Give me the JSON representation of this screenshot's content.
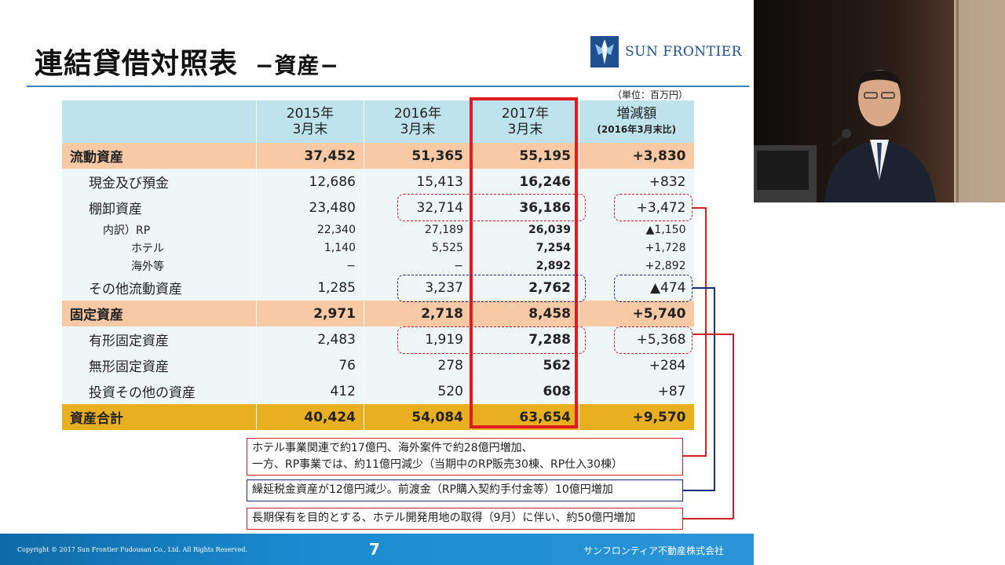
{
  "slide": {
    "title": "連結貸借対照表",
    "subtitle": "−資産−",
    "logo_text": "SUN FRONTIER",
    "unit_note": "（単位：百万円）",
    "page_number": "7",
    "copyright": "Copyright © 2017 Sun Frontier Fudousan Co., Ltd. All Rights Reserved.",
    "company": "サンフロンティア不動産株式会社"
  },
  "table": {
    "headers": [
      {
        "line1": "2015年",
        "line2": "3月末"
      },
      {
        "line1": "2016年",
        "line2": "3月末"
      },
      {
        "line1": "2017年",
        "line2": "3月末"
      },
      {
        "line1": "増減額",
        "line2": "(2016年3月末比)"
      }
    ],
    "rows": [
      {
        "label": "流動資産",
        "v1": "37,452",
        "v2": "51,365",
        "v3": "55,195",
        "v4": "+3,830"
      },
      {
        "label": "現金及び預金",
        "v1": "12,686",
        "v2": "15,413",
        "v3": "16,246",
        "v4": "+832"
      },
      {
        "label": "棚卸資産",
        "v1": "23,480",
        "v2": "32,714",
        "v3": "36,186",
        "v4": "+3,472"
      },
      {
        "label": "内訳）RP",
        "v1": "22,340",
        "v2": "27,189",
        "v3": "26,039",
        "v4": "▲1,150"
      },
      {
        "label": "ホテル",
        "v1": "1,140",
        "v2": "5,525",
        "v3": "7,254",
        "v4": "+1,728"
      },
      {
        "label": "海外等",
        "v1": "−",
        "v2": "−",
        "v3": "2,892",
        "v4": "+2,892"
      },
      {
        "label": "その他流動資産",
        "v1": "1,285",
        "v2": "3,237",
        "v3": "2,762",
        "v4": "▲474"
      },
      {
        "label": "固定資産",
        "v1": "2,971",
        "v2": "2,718",
        "v3": "8,458",
        "v4": "+5,740"
      },
      {
        "label": "有形固定資産",
        "v1": "2,483",
        "v2": "1,919",
        "v3": "7,288",
        "v4": "+5,368"
      },
      {
        "label": "無形固定資産",
        "v1": "76",
        "v2": "278",
        "v3": "562",
        "v4": "+284"
      },
      {
        "label": "投資その他の資産",
        "v1": "412",
        "v2": "520",
        "v3": "608",
        "v4": "+87"
      },
      {
        "label": "資産合計",
        "v1": "40,424",
        "v2": "54,084",
        "v3": "63,654",
        "v4": "+9,570"
      }
    ]
  },
  "notes": {
    "inventory_line1": "ホテル事業関連で約17億円、海外案件で約28億円増加、",
    "inventory_line2": "一方、RP事業では、約11億円減少（当期中のRP販売30棟、RP仕入30棟）",
    "other_current": "繰延税金資産が12億円減少。前渡金（RP購入契約手付金等）10億円増加",
    "tangible": "長期保有を目的とする、ホテル開発用地の取得（9月）に伴い、約50億円増加"
  },
  "colors": {
    "header_bg": "#bfe3ec",
    "major_row": "#f7c9a4",
    "total_row": "#e8b020",
    "highlight_red": "#e01b22",
    "annotation_blue": "#1a2f7a",
    "footer_blue": "#1a8bd0"
  }
}
